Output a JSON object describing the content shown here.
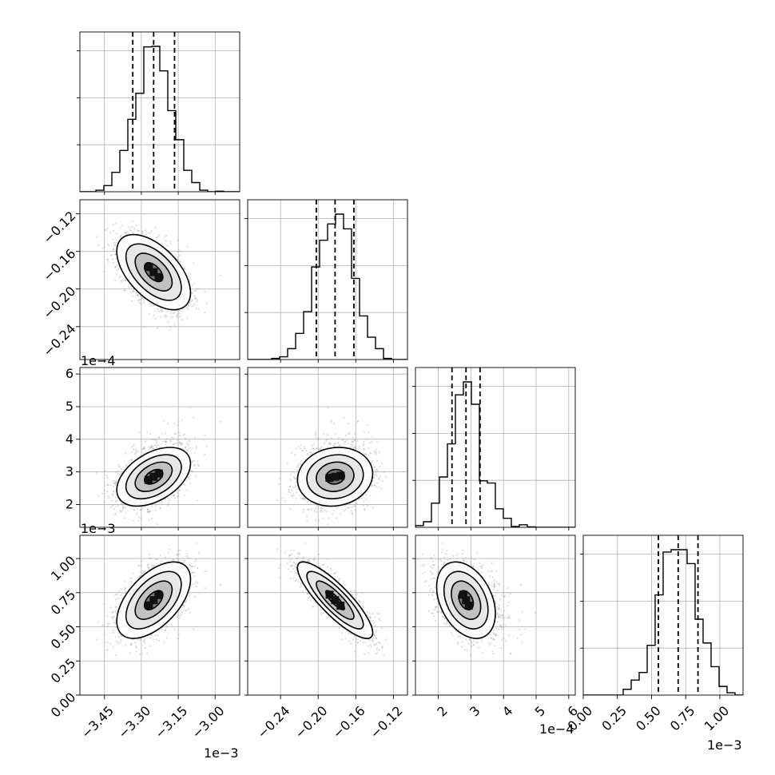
{
  "chart_data": {
    "type": "corner",
    "parameters": 4,
    "axes": [
      {
        "range": [
          -3.55,
          -2.9
        ],
        "ticks": [
          -3.45,
          -3.3,
          -3.15,
          -3.0
        ],
        "tick_labels": [
          "−3.45",
          "−3.30",
          "−3.15",
          "−3.00"
        ],
        "offset": "1e−3"
      },
      {
        "range": [
          -0.275,
          -0.105
        ],
        "ticks": [
          -0.24,
          -0.2,
          -0.16,
          -0.12
        ],
        "tick_labels": [
          "−0.24",
          "−0.20",
          "−0.16",
          "−0.12"
        ],
        "offset": ""
      },
      {
        "range": [
          1.3,
          6.2
        ],
        "ticks": [
          2,
          3,
          4,
          5,
          6
        ],
        "tick_labels": [
          "2",
          "3",
          "4",
          "5",
          "6"
        ],
        "offset": "1e−4"
      },
      {
        "range": [
          0.0,
          1.17
        ],
        "ticks": [
          0.0,
          0.25,
          0.5,
          0.75,
          1.0
        ],
        "tick_labels": [
          "0.00",
          "0.25",
          "0.50",
          "0.75",
          "1.00"
        ],
        "offset": "1e−3"
      }
    ],
    "offset_labels": {
      "row2_y": "1e−4",
      "row3_y": "1e−3",
      "col0_x": "1e−3",
      "col2_x": "1e−4",
      "col3_x": "1e−3"
    },
    "posteriors": [
      {
        "mean": -3.25,
        "std": 0.075,
        "quantiles": [
          -3.335,
          -3.25,
          -3.165
        ]
      },
      {
        "mean": -0.182,
        "std": 0.02,
        "quantiles": [
          -0.202,
          -0.182,
          -0.162
        ]
      },
      {
        "mean": 2.85,
        "std": 0.45,
        "quantiles": [
          2.42,
          2.85,
          3.28
        ]
      },
      {
        "mean": 0.695,
        "std": 0.14,
        "quantiles": [
          0.55,
          0.695,
          0.84
        ]
      }
    ],
    "correlations": {
      "1_0": -0.55,
      "2_0": 0.45,
      "2_1": 0.1,
      "3_0": 0.55,
      "3_1": -0.85,
      "3_2": -0.35
    },
    "grid": true,
    "quantile_lines": "dashed"
  }
}
